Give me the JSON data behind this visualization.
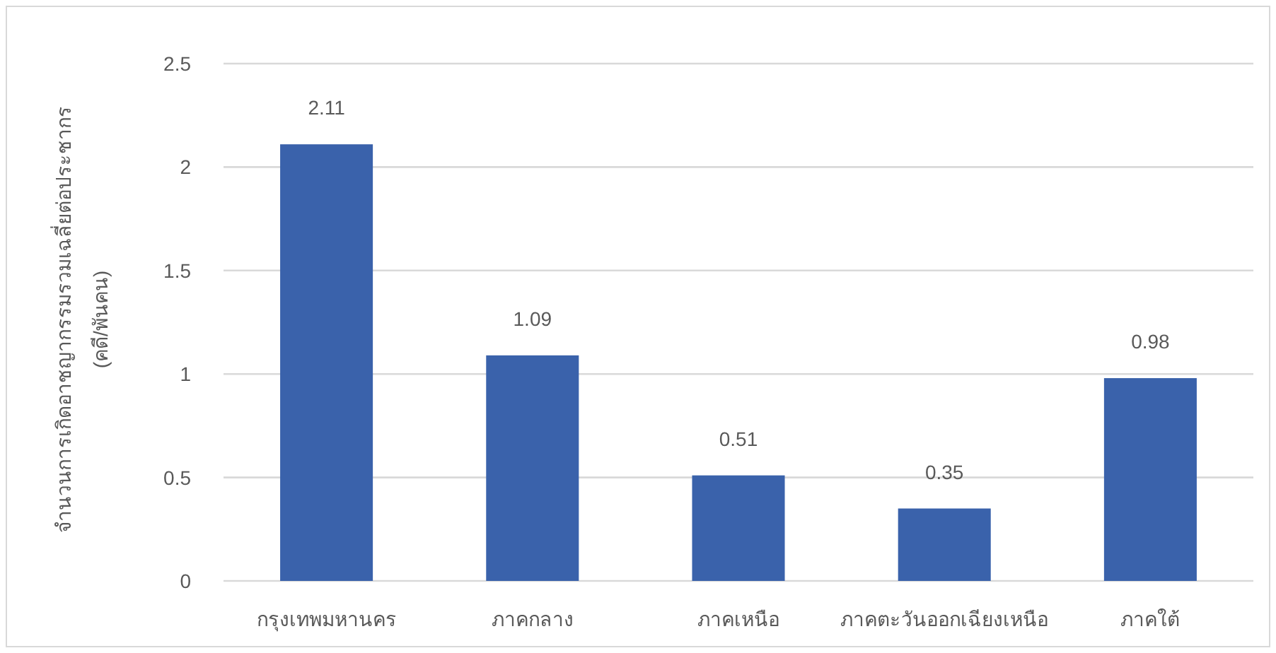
{
  "chart_data": {
    "type": "bar",
    "categories": [
      "กรุงเทพมหานคร",
      "ภาคกลาง",
      "ภาคเหนือ",
      "ภาคตะวันออกเฉียงเหนือ",
      "ภาคใต้"
    ],
    "values": [
      2.11,
      1.09,
      0.51,
      0.35,
      0.98
    ],
    "color": "#3a62ab",
    "ylabel": "จำนวนการเกิดอาชญากรรมรวมเฉลี่ยต่อประชากร\n(คดี/พันคน)",
    "ylim": [
      0,
      2.5
    ],
    "yticks": [
      0,
      0.5,
      1,
      1.5,
      2,
      2.5
    ],
    "grid": "y",
    "data_labels": true
  }
}
